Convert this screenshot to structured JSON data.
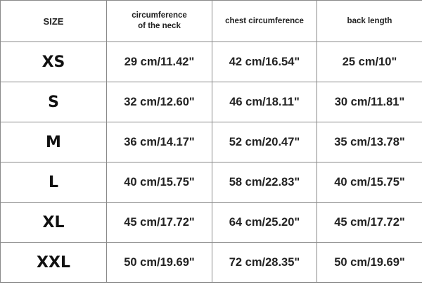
{
  "headers": [
    "SIZE",
    "circumference\nof the neck",
    "chest circumference",
    "back length"
  ],
  "rows": [
    {
      "size": "XS",
      "neck": "29 cm/11.42\"",
      "chest": "42 cm/16.54\"",
      "back": "25 cm/10\""
    },
    {
      "size": "S",
      "neck": "32 cm/12.60\"",
      "chest": "46 cm/18.11\"",
      "back": "30 cm/11.81\""
    },
    {
      "size": "M",
      "neck": "36 cm/14.17\"",
      "chest": "52 cm/20.47\"",
      "back": "35 cm/13.78\""
    },
    {
      "size": "L",
      "neck": "40 cm/15.75\"",
      "chest": "58 cm/22.83\"",
      "back": "40 cm/15.75\""
    },
    {
      "size": "XL",
      "neck": "45 cm/17.72\"",
      "chest": "64 cm/25.20\"",
      "back": "45 cm/17.72\""
    },
    {
      "size": "XXL",
      "neck": "50 cm/19.69\"",
      "chest": "72 cm/28.35\"",
      "back": "50 cm/19.69\""
    }
  ]
}
